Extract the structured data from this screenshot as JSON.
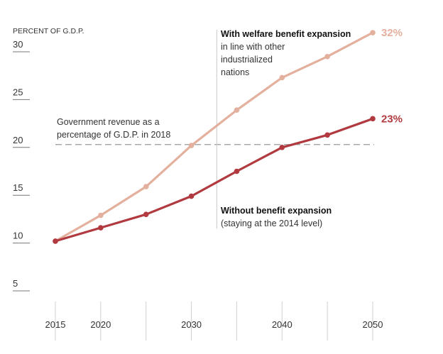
{
  "chart_data": {
    "type": "line",
    "unit_label": "PERCENT OF G.D.P.",
    "x": [
      2015,
      2020,
      2025,
      2030,
      2035,
      2040,
      2045,
      2050
    ],
    "x_ticks": [
      2015,
      2020,
      2030,
      2040,
      2050
    ],
    "x_tick_marks": [
      2015,
      2020,
      2025,
      2030,
      2035,
      2040,
      2045,
      2050
    ],
    "xlim": [
      2015,
      2050
    ],
    "y_ticks": [
      5,
      10,
      15,
      20,
      25,
      30
    ],
    "ylim": [
      5,
      30
    ],
    "grid": false,
    "series": [
      {
        "name": "With welfare benefit expansion",
        "subtitle_lines": [
          "in line with other",
          "industrialized",
          "nations"
        ],
        "values": [
          10.2,
          12.9,
          15.9,
          20.2,
          23.9,
          27.3,
          29.5,
          32.0
        ],
        "end_label": "32%",
        "color": "#e4b09e"
      },
      {
        "name": "Without benefit expansion",
        "subtitle_lines": [
          "(staying at the 2014 level)"
        ],
        "values": [
          10.2,
          11.6,
          13.0,
          14.9,
          17.5,
          20.0,
          21.3,
          23.0
        ],
        "end_label": "23%",
        "color": "#b03a3f"
      }
    ],
    "reference_line": {
      "value": 20.3,
      "label_lines": [
        "Government revenue as a",
        "percentage of G.D.P. in 2018"
      ],
      "color": "#999999"
    },
    "marker_line": {
      "x": 2032.8,
      "color": "#c8c8c8"
    }
  }
}
